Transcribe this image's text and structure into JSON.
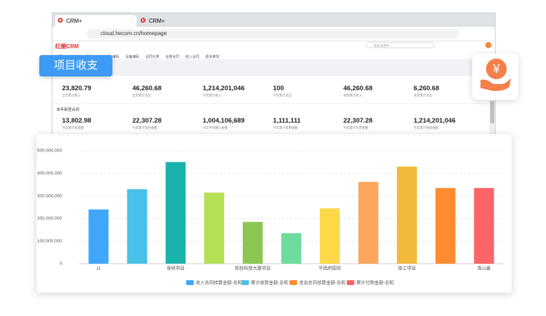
{
  "browser": {
    "tabs": [
      "CRM+",
      "CRM+"
    ],
    "url": "cloud.hecom.cn/homepage"
  },
  "app": {
    "logo": "红圈CRM",
    "search": "搜索关键字...",
    "nav": [
      "首页",
      "工作台",
      "相关方",
      "材料编码",
      "设备编码",
      "合同分类",
      "全部合同",
      "收入合同",
      "更多菜单"
    ],
    "stats_row1": [
      {
        "value": "23,820.79",
        "label": "全年累计收入"
      },
      {
        "value": "46,260.68",
        "label": "全年累计支出"
      },
      {
        "value": "1,214,201,046",
        "label": "今年累计收入"
      },
      {
        "value": "100",
        "label": "今年累计支出"
      },
      {
        "value": "46,260.68",
        "label": "本月累计收入"
      },
      {
        "value": "6,260.68",
        "label": "本月累计支出"
      }
    ],
    "section2_title": "本年新签合同",
    "stats_row2": [
      {
        "value": "13,802.98",
        "label": "今年累计新签额"
      },
      {
        "value": "22,307.28",
        "label": "今年累计签约金额"
      },
      {
        "value": "1,004,106,689",
        "label": "今年平均确认金额"
      },
      {
        "value": "1,111,111",
        "label": "今年累计结算金额"
      },
      {
        "value": "22,307.28",
        "label": "今年累计开票金额"
      },
      {
        "value": "1,214,201,046",
        "label": "今年累计收款金额"
      }
    ]
  },
  "badge": "项目收支",
  "icon_symbol": "¥",
  "chart_data": {
    "type": "bar",
    "categories": [
      "11",
      null,
      "保修项目",
      null,
      "和创科技大厦项目",
      null,
      "平西府医院",
      null,
      "竣工项目",
      null,
      "青山面"
    ],
    "values": [
      240000000,
      330000000,
      450000000,
      315000000,
      185000000,
      135000000,
      245000000,
      362000000,
      430000000,
      335000000,
      335000000
    ],
    "colors": [
      "#3fa7fa",
      "#47c1e8",
      "#19b2ac",
      "#b5df56",
      "#8ec653",
      "#6ddc9e",
      "#fdd84a",
      "#fca65e",
      "#f3b93b",
      "#fd8b2f",
      "#fd6467"
    ],
    "ylim": [
      0,
      500000000
    ],
    "yticks": [
      0,
      {
        "value": 100000000,
        "label": "100,000,000"
      },
      {
        "value": 200000000,
        "label": "200,000,000"
      },
      {
        "value": 300000000,
        "label": "300,000,000"
      },
      {
        "value": 400000000,
        "label": "400,000,000"
      },
      {
        "value": 500000000,
        "label": "500,000,000"
      }
    ],
    "grid": true,
    "legend": [
      {
        "name": "收入合同结算金额-总和",
        "color": "#3fa7fa"
      },
      {
        "name": "累计收款金额-总和",
        "color": "#47c1e8"
      },
      {
        "name": "支出合同结算金额-总和",
        "color": "#fd8b2f"
      },
      {
        "name": "累计付款金额-总和",
        "color": "#fd6467"
      }
    ]
  }
}
